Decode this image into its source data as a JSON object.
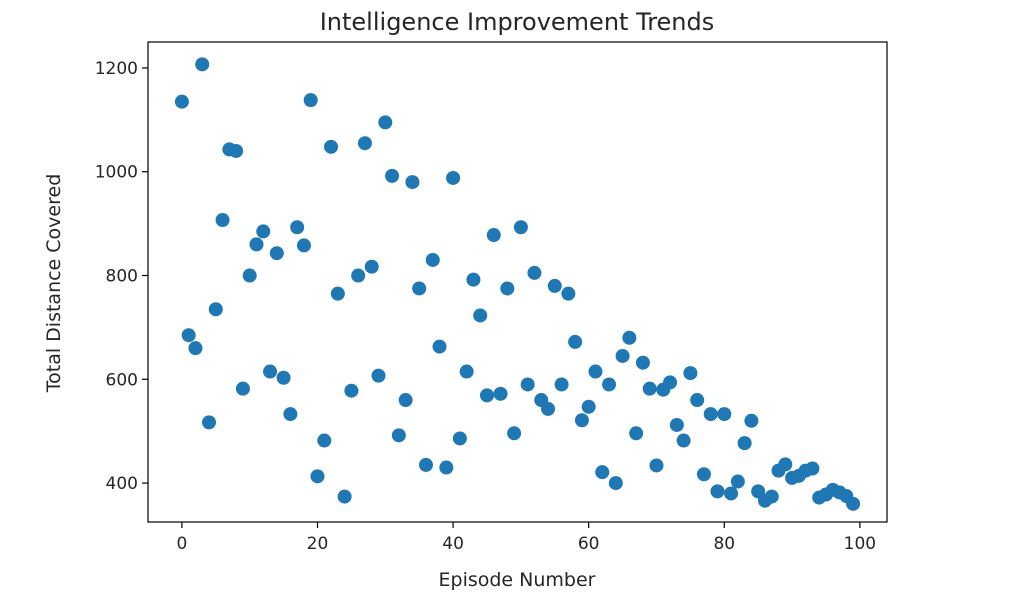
{
  "chart_data": {
    "type": "scatter",
    "title": "Intelligence Improvement Trends",
    "xlabel": "Episode Number",
    "ylabel": "Total Distance Covered",
    "xlim": [
      -5,
      104
    ],
    "ylim": [
      325,
      1250
    ],
    "xticks": [
      0,
      20,
      40,
      60,
      80,
      100
    ],
    "yticks": [
      400,
      600,
      800,
      1000,
      1200
    ],
    "grid": false,
    "color": "#1f77b4",
    "x": [
      0,
      1,
      2,
      3,
      4,
      5,
      6,
      7,
      8,
      9,
      10,
      11,
      12,
      13,
      14,
      15,
      16,
      17,
      18,
      19,
      20,
      21,
      22,
      23,
      24,
      25,
      26,
      27,
      28,
      29,
      30,
      31,
      32,
      33,
      34,
      35,
      36,
      37,
      38,
      39,
      40,
      41,
      42,
      43,
      44,
      45,
      46,
      47,
      48,
      49,
      50,
      51,
      52,
      53,
      54,
      55,
      56,
      57,
      58,
      59,
      60,
      61,
      62,
      63,
      64,
      65,
      66,
      67,
      68,
      69,
      70,
      71,
      72,
      73,
      74,
      75,
      76,
      77,
      78,
      79,
      80,
      81,
      82,
      83,
      84,
      85,
      86,
      87,
      88,
      89,
      90,
      91,
      92,
      93,
      94,
      95,
      96,
      97,
      98,
      99
    ],
    "y": [
      1135,
      685,
      660,
      1207,
      517,
      735,
      907,
      1043,
      1040,
      582,
      800,
      860,
      885,
      615,
      843,
      603,
      533,
      893,
      858,
      1138,
      413,
      482,
      1048,
      765,
      374,
      578,
      800,
      1055,
      817,
      607,
      1095,
      992,
      492,
      560,
      980,
      775,
      435,
      830,
      663,
      430,
      988,
      486,
      615,
      792,
      723,
      569,
      878,
      572,
      775,
      496,
      893,
      590,
      805,
      560,
      543,
      780,
      590,
      765,
      672,
      521,
      547,
      615,
      421,
      590,
      400,
      645,
      680,
      496,
      632,
      582,
      434,
      580,
      594,
      512,
      482,
      612,
      560,
      417,
      533,
      384,
      533,
      380,
      403,
      477,
      520,
      384,
      366,
      374,
      424,
      436,
      410,
      414,
      424,
      428,
      372,
      378,
      387,
      382,
      375,
      360
    ]
  }
}
